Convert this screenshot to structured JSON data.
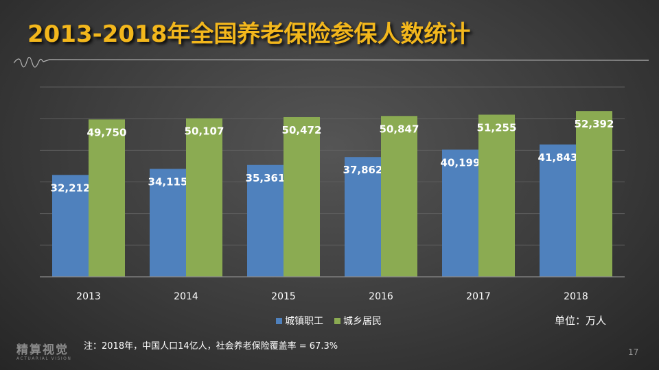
{
  "title": "2013-2018年全国养老保险参保人数统计",
  "chart_data": {
    "type": "bar",
    "categories": [
      "2013",
      "2014",
      "2015",
      "2016",
      "2017",
      "2018"
    ],
    "series": [
      {
        "name": "城镇职工",
        "color": "#4f81bd",
        "values": [
          32212,
          34115,
          35361,
          37862,
          40199,
          41843
        ],
        "labels": [
          "32,212",
          "34,115",
          "35,361",
          "37,862",
          "40,199",
          "41,843"
        ]
      },
      {
        "name": "城乡居民",
        "color": "#8bab52",
        "values": [
          49750,
          50107,
          50472,
          50847,
          51255,
          52392
        ],
        "labels": [
          "49,750",
          "50,107",
          "50,472",
          "50,847",
          "51,255",
          "52,392"
        ]
      }
    ],
    "ylim": [
      0,
      60000
    ],
    "grid": true,
    "legend_position": "bottom"
  },
  "unit_label": "单位：万人",
  "note": "注：2018年，中国人口14亿人，社会养老保险覆盖率 = 67.3%",
  "logo": {
    "main": "精算视觉",
    "sub": "ACTUARIAL VISION"
  },
  "page_number": "17"
}
